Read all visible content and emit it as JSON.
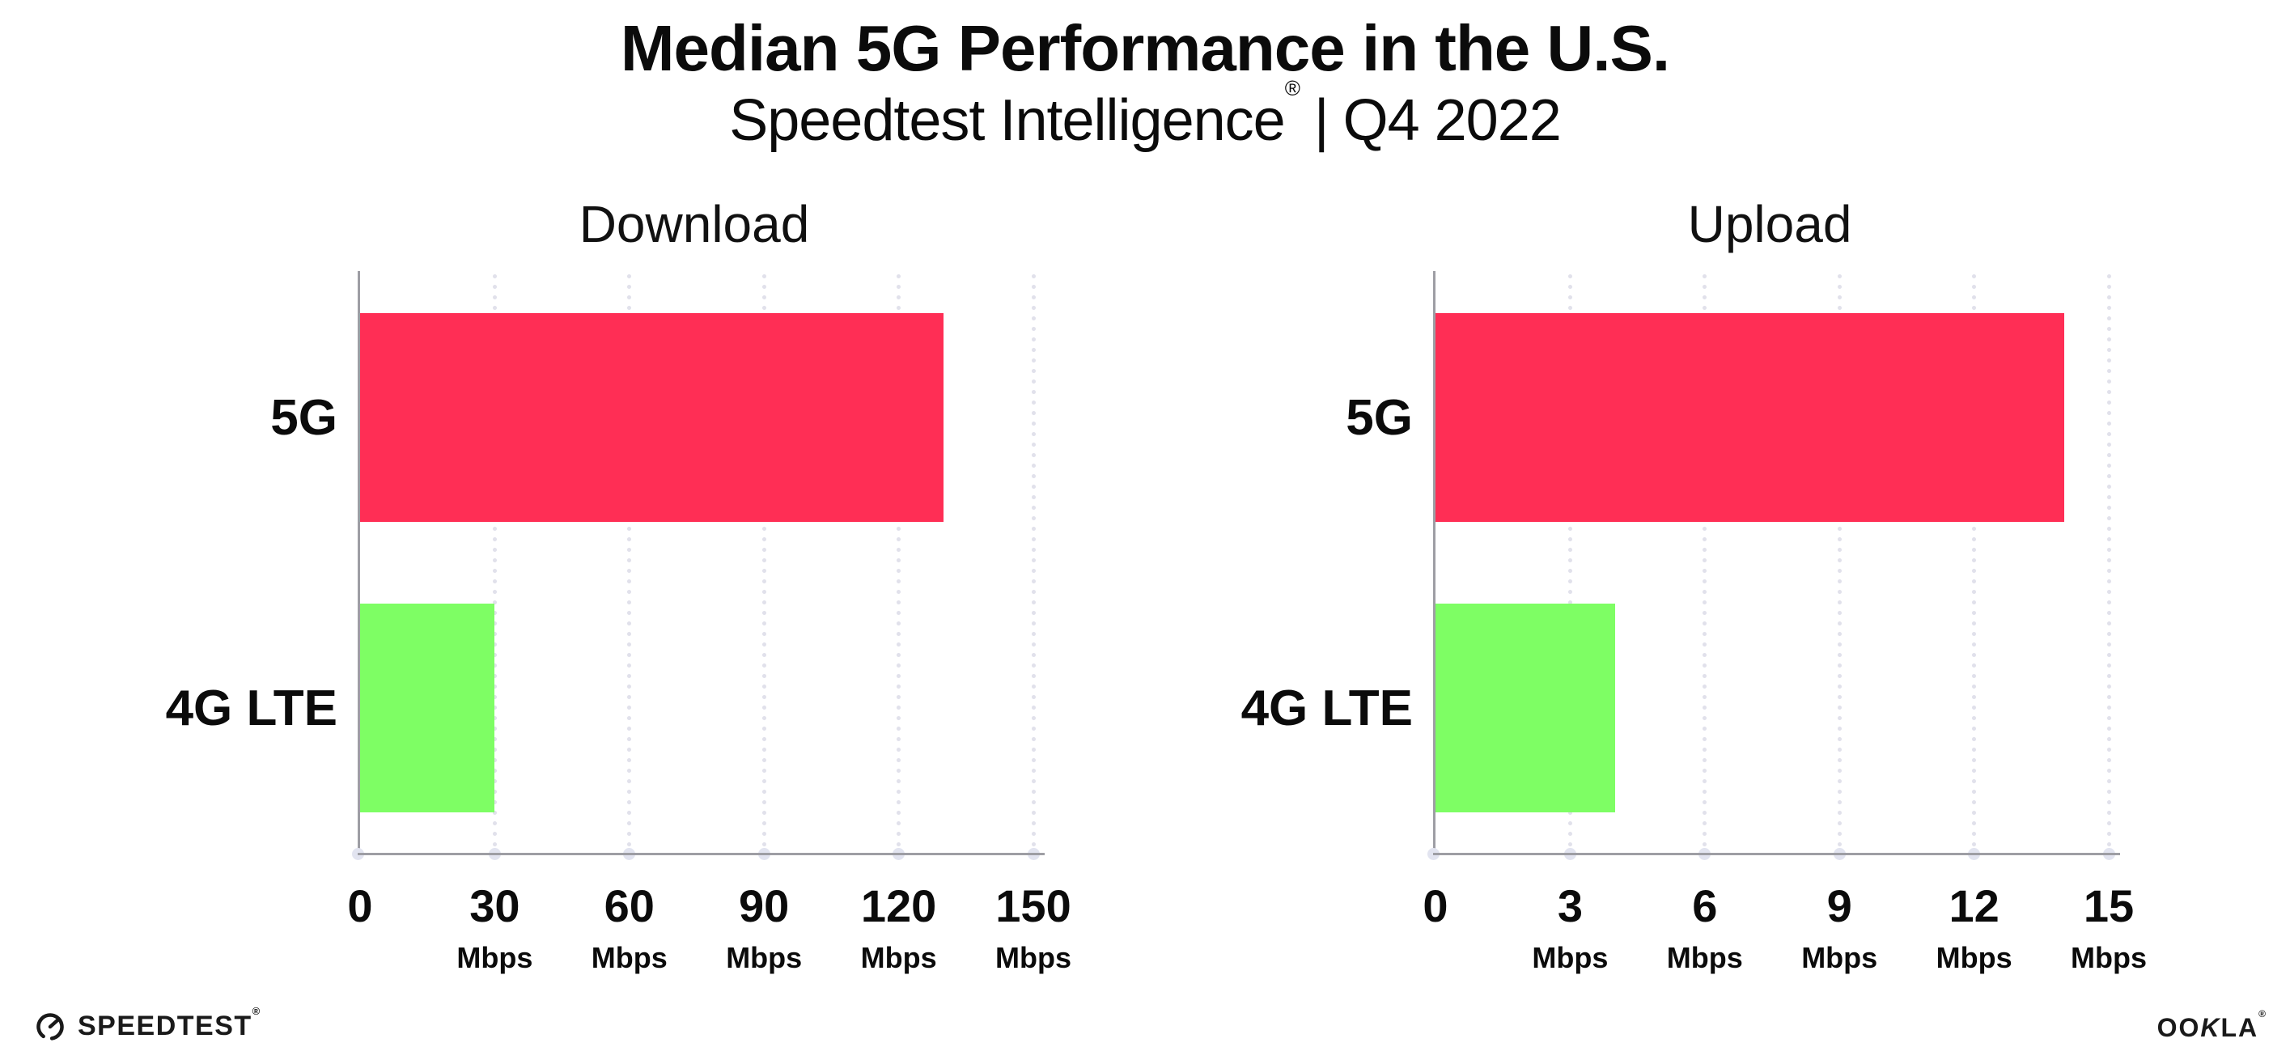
{
  "header": {
    "title": "Median 5G Performance in the U.S.",
    "subtitle_brand": "Speedtest Intelligence",
    "subtitle_reg": "®",
    "subtitle_sep": "|",
    "subtitle_period": "Q4 2022"
  },
  "colors": {
    "bar_5g": "#FF2E55",
    "bar_4g_lte": "#7EFE64",
    "axis": "#9E9EA4",
    "gridline_dots": "#E1E1EB",
    "text": "#0B0B0B"
  },
  "chart_data": [
    {
      "type": "bar",
      "orientation": "horizontal",
      "title": "Download",
      "categories": [
        "5G",
        "4G LTE"
      ],
      "values": [
        130,
        30
      ],
      "unit": "Mbps",
      "xlim": [
        0,
        150
      ],
      "xticks": [
        0,
        30,
        60,
        90,
        120,
        150
      ],
      "grid": "vertical-dotted",
      "legend": "none",
      "bar_colors": [
        "#FF2E55",
        "#7EFE64"
      ]
    },
    {
      "type": "bar",
      "orientation": "horizontal",
      "title": "Upload",
      "categories": [
        "5G",
        "4G LTE"
      ],
      "values": [
        14,
        4
      ],
      "unit": "Mbps",
      "xlim": [
        0,
        15
      ],
      "xticks": [
        0,
        3,
        6,
        9,
        12,
        15
      ],
      "grid": "vertical-dotted",
      "legend": "none",
      "bar_colors": [
        "#FF2E55",
        "#7EFE64"
      ]
    }
  ],
  "footer": {
    "speedtest_label": "SPEEDTEST",
    "speedtest_reg": "®",
    "ookla_label_pre": "OO",
    "ookla_label_k": "K",
    "ookla_label_post": "LA",
    "ookla_reg": "®"
  }
}
